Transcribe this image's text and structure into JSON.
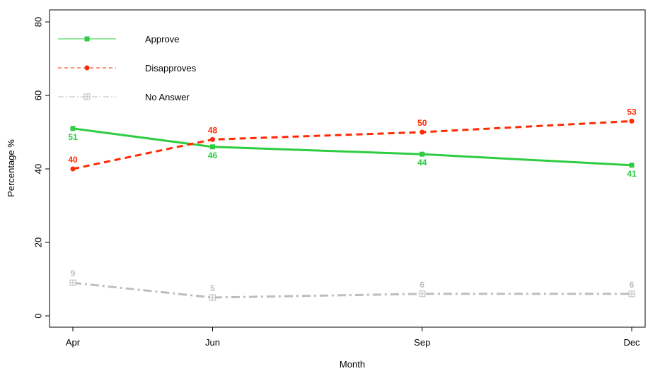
{
  "chart_data": {
    "type": "line",
    "categories": [
      "Apr",
      "Jun",
      "Sep",
      "Dec"
    ],
    "x_month_index": [
      4,
      6,
      9,
      12
    ],
    "series": [
      {
        "name": "Approve",
        "values": [
          51,
          46,
          44,
          41
        ],
        "color": "#2ecc40",
        "line": "solid",
        "marker": "square"
      },
      {
        "name": "Disapproves",
        "values": [
          40,
          48,
          50,
          53
        ],
        "color": "#ff2a00",
        "line": "dashed",
        "marker": "circle"
      },
      {
        "name": "No Answer",
        "values": [
          9,
          5,
          6,
          6
        ],
        "color": "#bdbdbd",
        "line": "dashdot",
        "marker": "boxed-plus"
      }
    ],
    "xlabel": "Month",
    "ylabel": "Percentage %",
    "ylim": [
      0,
      80
    ],
    "yticks": [
      0,
      20,
      40,
      60,
      80
    ],
    "grid": false,
    "legend_position": "top-left"
  }
}
